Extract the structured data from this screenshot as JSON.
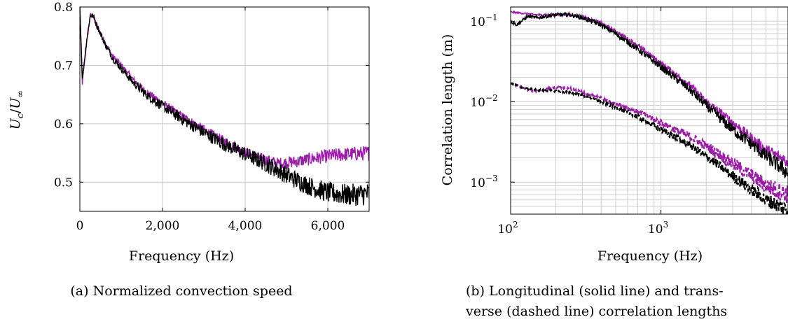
{
  "chart_data": [
    {
      "type": "line",
      "caption": "(a) Normalized convection speed",
      "xlabel": "Frequency (Hz)",
      "ylabel": "U_c/U_∞",
      "ylabel_parts": {
        "u": "U",
        "c": "c",
        "slash": "/",
        "inf": "∞"
      },
      "xlim": [
        0,
        7000
      ],
      "ylim": [
        0.45,
        0.8
      ],
      "xticks": [
        0,
        2000,
        4000,
        6000
      ],
      "xtick_labels": [
        "0",
        "2,000",
        "4,000",
        "6,000"
      ],
      "yticks": [
        0.5,
        0.6,
        0.7,
        0.8
      ],
      "ytick_labels": [
        "0.5",
        "0.6",
        "0.7",
        "0.8"
      ],
      "grid": true,
      "colors": {
        "purple": "#9b1fa6",
        "black": "#000000"
      },
      "series": [
        {
          "color": "purple",
          "style": "solid",
          "noise": [
            0.004,
            0.013
          ],
          "x": [
            0,
            60,
            150,
            250,
            320,
            400,
            600,
            800,
            1000,
            1300,
            1600,
            2000,
            2500,
            3000,
            3500,
            4000,
            4400,
            4800,
            5200,
            5600,
            6000,
            6500,
            7000
          ],
          "y": [
            0.8,
            0.67,
            0.73,
            0.785,
            0.785,
            0.77,
            0.74,
            0.715,
            0.7,
            0.675,
            0.655,
            0.635,
            0.612,
            0.59,
            0.57,
            0.55,
            0.54,
            0.532,
            0.535,
            0.54,
            0.545,
            0.548,
            0.55
          ]
        },
        {
          "color": "black",
          "style": "solid",
          "noise": [
            0.004,
            0.02
          ],
          "x": [
            0,
            60,
            150,
            250,
            320,
            400,
            600,
            800,
            1000,
            1300,
            1600,
            2000,
            2500,
            3000,
            3500,
            4000,
            4400,
            4800,
            5200,
            5600,
            6000,
            6500,
            7000
          ],
          "y": [
            0.8,
            0.675,
            0.735,
            0.785,
            0.785,
            0.77,
            0.738,
            0.712,
            0.695,
            0.67,
            0.65,
            0.63,
            0.607,
            0.585,
            0.565,
            0.548,
            0.535,
            0.52,
            0.505,
            0.492,
            0.482,
            0.478,
            0.48
          ]
        }
      ]
    },
    {
      "type": "line",
      "caption_lines": [
        "(b) Longitudinal (solid line) and trans-",
        "verse (dashed line) correlation lengths"
      ],
      "xlabel": "Frequency (Hz)",
      "ylabel": "Correlation length (m)",
      "x_scale": "log",
      "y_scale": "log",
      "xlim": [
        100,
        7000
      ],
      "ylim": [
        0.0004,
        0.15
      ],
      "xticks": [
        100,
        1000
      ],
      "xtick_labels": [
        {
          "base": "10",
          "exp": "2"
        },
        {
          "base": "10",
          "exp": "3"
        }
      ],
      "yticks": [
        0.001,
        0.01,
        0.1
      ],
      "ytick_labels": [
        {
          "base": "10",
          "exp": "−3"
        },
        {
          "base": "10",
          "exp": "−2"
        },
        {
          "base": "10",
          "exp": "−1"
        }
      ],
      "grid": true,
      "colors": {
        "purple": "#9b1fa6",
        "black": "#000000"
      },
      "series": [
        {
          "color": "purple",
          "style": "solid",
          "noise": [
            0.01,
            0.09
          ],
          "x": [
            100,
            150,
            200,
            250,
            300,
            400,
            500,
            700,
            1000,
            1500,
            2000,
            3000,
            4000,
            5000,
            7000
          ],
          "y": [
            0.13,
            0.12,
            0.12,
            0.12,
            0.115,
            0.095,
            0.075,
            0.05,
            0.03,
            0.017,
            0.01,
            0.0055,
            0.0035,
            0.0025,
            0.0018
          ]
        },
        {
          "color": "black",
          "style": "solid",
          "noise": [
            0.02,
            0.1
          ],
          "x": [
            100,
            110,
            130,
            150,
            200,
            250,
            300,
            400,
            500,
            700,
            1000,
            1500,
            2000,
            3000,
            4000,
            5000,
            7000
          ],
          "y": [
            0.1,
            0.09,
            0.115,
            0.11,
            0.12,
            0.12,
            0.11,
            0.09,
            0.07,
            0.045,
            0.027,
            0.015,
            0.009,
            0.0045,
            0.003,
            0.0021,
            0.0013
          ]
        },
        {
          "color": "purple",
          "style": "dashed",
          "noise": [
            0.01,
            0.12
          ],
          "x": [
            100,
            130,
            150,
            200,
            250,
            300,
            400,
            500,
            700,
            1000,
            1500,
            2000,
            3000,
            4000,
            5000,
            7000
          ],
          "y": [
            0.017,
            0.014,
            0.0135,
            0.015,
            0.0145,
            0.013,
            0.011,
            0.0095,
            0.0075,
            0.0055,
            0.0038,
            0.0028,
            0.0017,
            0.0012,
            0.0009,
            0.0007
          ]
        },
        {
          "color": "black",
          "style": "dashed",
          "noise": [
            0.01,
            0.1
          ],
          "x": [
            100,
            120,
            150,
            200,
            250,
            300,
            400,
            500,
            700,
            1000,
            1500,
            2000,
            3000,
            4000,
            5000,
            7000
          ],
          "y": [
            0.017,
            0.015,
            0.014,
            0.0135,
            0.013,
            0.012,
            0.01,
            0.0085,
            0.0065,
            0.0045,
            0.003,
            0.0021,
            0.0012,
            0.0008,
            0.0006,
            0.00045
          ]
        }
      ]
    }
  ]
}
